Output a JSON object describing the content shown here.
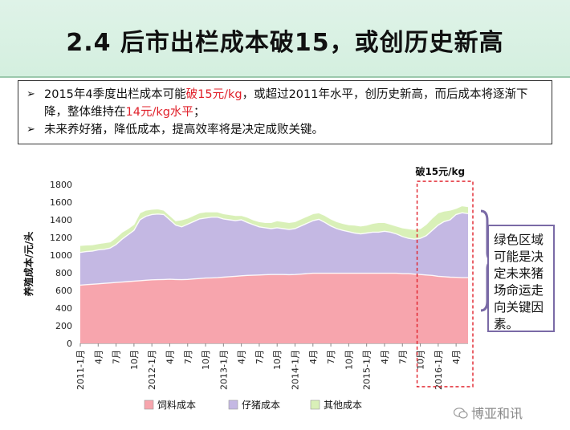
{
  "page": {
    "title": "2.4 后市出栏成本破15，或创历史新高",
    "bullets": [
      {
        "parts": [
          {
            "text": "2015年4季度出栏成本可能",
            "color": ""
          },
          {
            "text": "破15元/kg",
            "color": "red"
          },
          {
            "text": "，或超过2011年水平，创历史新高，而后成本将逐渐下降，整体维持在",
            "color": ""
          },
          {
            "text": "14元/kg水平",
            "color": "red"
          },
          {
            "text": "；",
            "color": ""
          }
        ]
      },
      {
        "parts": [
          {
            "text": "未来养好猪，降低成本，提高效率将是决定成败关键。",
            "color": ""
          }
        ]
      }
    ],
    "callout": "绿色区域可能是决定未来猪场命运走向关键因素。",
    "footer": "博亚和讯",
    "colors": {
      "feed": "#f7a5ad",
      "piglet": "#c4b8e3",
      "other": "#d9f0b8",
      "accent_red": "#e0202a"
    }
  },
  "chart_data": {
    "type": "area",
    "stacked": true,
    "ylabel": "养殖成本/元/头",
    "ylim": [
      0,
      1800
    ],
    "yticks": [
      0,
      200,
      400,
      600,
      800,
      1000,
      1200,
      1400,
      1600,
      1800
    ],
    "x_tick_labels": [
      "2011-1月",
      "4月",
      "7月",
      "10月",
      "2012-1月",
      "4月",
      "7月",
      "10月",
      "2013-1月",
      "4月",
      "7月",
      "10月",
      "2014-1月",
      "4月",
      "7月",
      "10月",
      "2015-1月",
      "4月",
      "7月",
      "10月",
      "2016-1月",
      "4月"
    ],
    "months": [
      "2011-01",
      "2011-02",
      "2011-03",
      "2011-04",
      "2011-05",
      "2011-06",
      "2011-07",
      "2011-08",
      "2011-09",
      "2011-10",
      "2011-11",
      "2011-12",
      "2012-01",
      "2012-02",
      "2012-03",
      "2012-04",
      "2012-05",
      "2012-06",
      "2012-07",
      "2012-08",
      "2012-09",
      "2012-10",
      "2012-11",
      "2012-12",
      "2013-01",
      "2013-02",
      "2013-03",
      "2013-04",
      "2013-05",
      "2013-06",
      "2013-07",
      "2013-08",
      "2013-09",
      "2013-10",
      "2013-11",
      "2013-12",
      "2014-01",
      "2014-02",
      "2014-03",
      "2014-04",
      "2014-05",
      "2014-06",
      "2014-07",
      "2014-08",
      "2014-09",
      "2014-10",
      "2014-11",
      "2014-12",
      "2015-01",
      "2015-02",
      "2015-03",
      "2015-04",
      "2015-05",
      "2015-06",
      "2015-07",
      "2015-08",
      "2015-09",
      "2015-10",
      "2015-11",
      "2015-12",
      "2016-01",
      "2016-02",
      "2016-03",
      "2016-04",
      "2016-05",
      "2016-06"
    ],
    "series": [
      {
        "name": "饲料成本",
        "color": "#f7a5ad",
        "values": [
          660,
          665,
          670,
          675,
          680,
          685,
          690,
          695,
          700,
          705,
          710,
          715,
          720,
          722,
          724,
          726,
          724,
          722,
          725,
          730,
          735,
          740,
          742,
          745,
          750,
          755,
          760,
          765,
          770,
          772,
          775,
          778,
          780,
          780,
          780,
          778,
          780,
          785,
          790,
          795,
          795,
          795,
          795,
          795,
          795,
          795,
          795,
          795,
          795,
          795,
          795,
          795,
          795,
          795,
          790,
          790,
          785,
          780,
          775,
          770,
          760,
          755,
          750,
          748,
          745,
          745
        ]
      },
      {
        "name": "仔猪成本",
        "color": "#c4b8e3",
        "values": [
          1030,
          1040,
          1045,
          1060,
          1065,
          1080,
          1120,
          1180,
          1230,
          1280,
          1400,
          1440,
          1460,
          1465,
          1460,
          1400,
          1340,
          1320,
          1350,
          1380,
          1410,
          1420,
          1430,
          1430,
          1410,
          1400,
          1390,
          1400,
          1370,
          1345,
          1320,
          1310,
          1300,
          1310,
          1300,
          1290,
          1300,
          1330,
          1360,
          1390,
          1405,
          1370,
          1330,
          1300,
          1280,
          1265,
          1250,
          1240,
          1250,
          1260,
          1260,
          1270,
          1260,
          1240,
          1210,
          1190,
          1180,
          1190,
          1220,
          1280,
          1340,
          1380,
          1400,
          1460,
          1480,
          1470
        ]
      },
      {
        "name": "其他成本",
        "color": "#d9f0b8",
        "values": [
          1110,
          1115,
          1118,
          1130,
          1140,
          1150,
          1200,
          1260,
          1300,
          1350,
          1480,
          1510,
          1520,
          1525,
          1510,
          1450,
          1390,
          1400,
          1420,
          1450,
          1480,
          1490,
          1490,
          1490,
          1470,
          1460,
          1450,
          1450,
          1430,
          1400,
          1380,
          1370,
          1370,
          1390,
          1380,
          1370,
          1380,
          1410,
          1440,
          1470,
          1480,
          1450,
          1410,
          1380,
          1360,
          1345,
          1340,
          1330,
          1340,
          1360,
          1370,
          1370,
          1350,
          1330,
          1310,
          1300,
          1290,
          1300,
          1350,
          1420,
          1480,
          1500,
          1510,
          1530,
          1560,
          1550
        ]
      }
    ],
    "highlight": {
      "label": "破15元/kg",
      "from": "2015-10",
      "to": "2016-06",
      "color": "#e0202a"
    },
    "legend_position": "bottom",
    "grid": false
  }
}
